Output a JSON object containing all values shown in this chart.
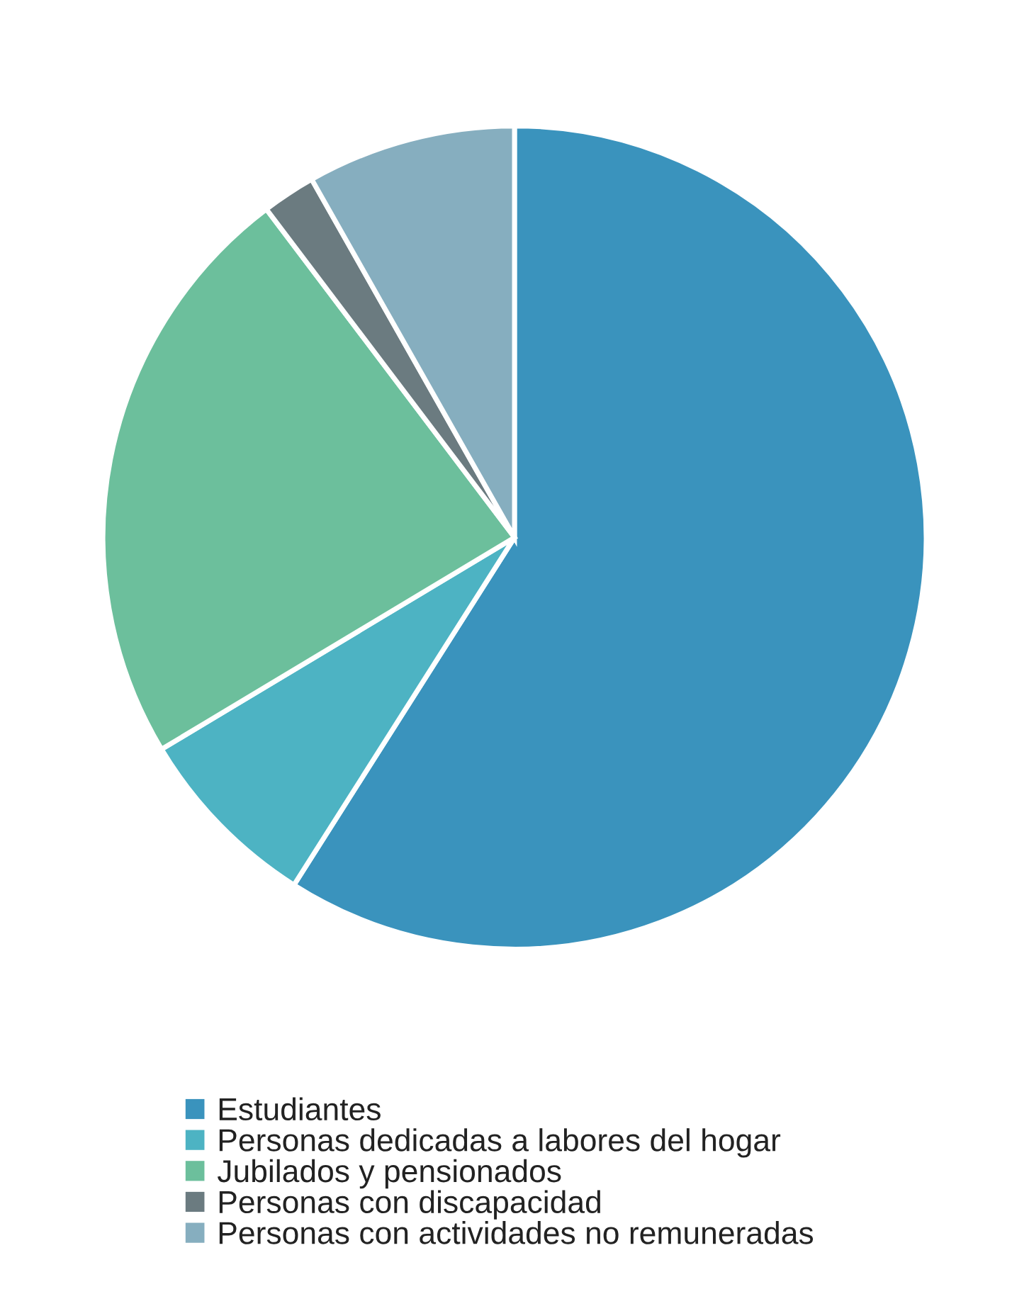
{
  "chart_data": {
    "type": "pie",
    "categories": [
      "Estudiantes",
      "Personas dedicadas a labores del hogar",
      "Jubilados y pensionados",
      "Personas con discapacidad",
      "Personas con actividades no remuneradas"
    ],
    "values": [
      59.0,
      7.4,
      23.3,
      2.1,
      8.2
    ],
    "colors": [
      "#3a93bd",
      "#4db3c3",
      "#6cbf9c",
      "#6b7b80",
      "#86aebf"
    ],
    "legend": "bottom"
  }
}
